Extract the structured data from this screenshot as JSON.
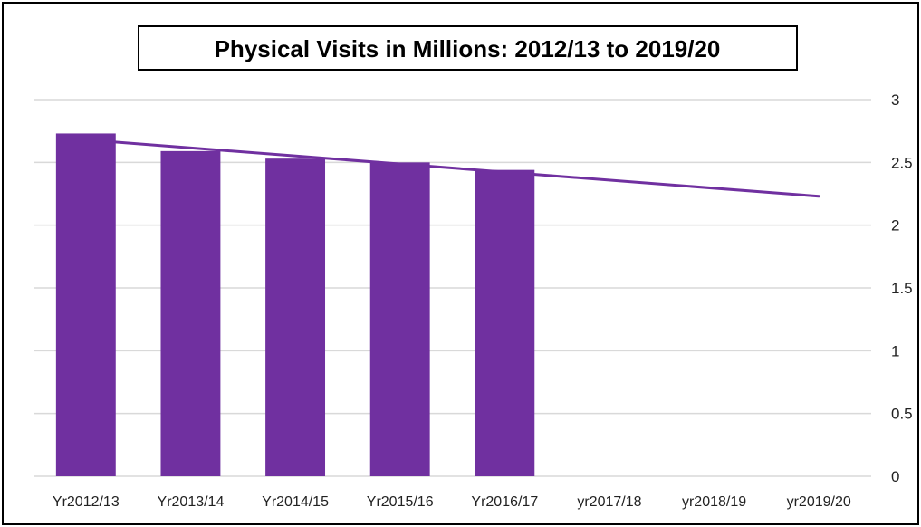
{
  "chart_data": {
    "type": "bar",
    "title": "Physical Visits in Millions: 2012/13 to 2019/20",
    "xlabel": "",
    "ylabel": "",
    "categories": [
      "Yr2012/13",
      "Yr2013/14",
      "Yr2014/15",
      "Yr2015/16",
      "Yr2016/17",
      "yr2017/18",
      "yr2018/19",
      "yr2019/20"
    ],
    "values": [
      2.73,
      2.59,
      2.53,
      2.5,
      2.44,
      null,
      null,
      null
    ],
    "trendline": {
      "type": "linear",
      "start_value": 2.68,
      "end_value": 2.23
    },
    "ylim": [
      0,
      3
    ],
    "yticks": [
      0,
      0.5,
      1,
      1.5,
      2,
      2.5,
      3
    ],
    "ytick_labels": [
      "0",
      "0.5",
      "1",
      "1.5",
      "2",
      "2.5",
      "3"
    ],
    "y_axis_side": "right",
    "grid": true,
    "legend": "none",
    "colors": {
      "bar": "#7030A0",
      "trendline": "#7030A0",
      "grid": "#d9d9d9",
      "title_border": "#000000"
    }
  }
}
